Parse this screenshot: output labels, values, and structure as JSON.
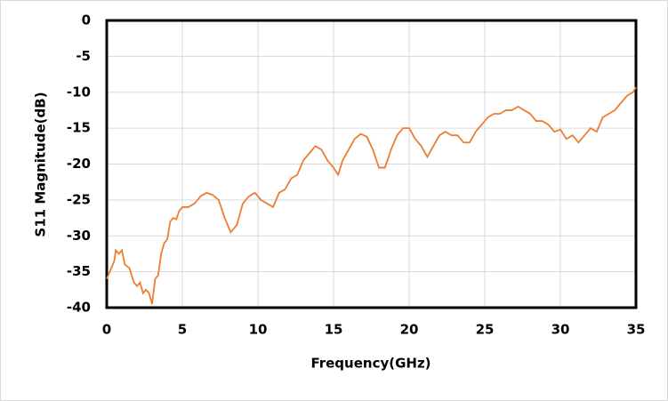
{
  "chart_data": {
    "type": "line",
    "x_label": "Frequency(GHz)",
    "y_label": "S11 Magnitude(dB)",
    "x": [
      0,
      0.2,
      0.5,
      0.6,
      0.8,
      1.0,
      1.2,
      1.5,
      1.8,
      2.0,
      2.2,
      2.4,
      2.6,
      2.8,
      3.0,
      3.2,
      3.4,
      3.6,
      3.8,
      4.0,
      4.2,
      4.4,
      4.6,
      4.8,
      5.0,
      5.4,
      5.8,
      6.2,
      6.6,
      7.0,
      7.4,
      7.8,
      8.2,
      8.6,
      9.0,
      9.4,
      9.8,
      10.2,
      10.6,
      11.0,
      11.4,
      11.8,
      12.2,
      12.6,
      13.0,
      13.4,
      13.8,
      14.2,
      14.6,
      15.0,
      15.3,
      15.6,
      16.0,
      16.4,
      16.8,
      17.2,
      17.6,
      18.0,
      18.4,
      18.8,
      19.2,
      19.6,
      20.0,
      20.4,
      20.8,
      21.2,
      21.6,
      22.0,
      22.4,
      22.8,
      23.2,
      23.6,
      24.0,
      24.4,
      24.8,
      25.2,
      25.6,
      26.0,
      26.4,
      26.8,
      27.2,
      27.6,
      28.0,
      28.4,
      28.8,
      29.2,
      29.6,
      30.0,
      30.4,
      30.8,
      31.2,
      31.6,
      32.0,
      32.4,
      32.8,
      33.2,
      33.6,
      34.0,
      34.4,
      34.8,
      35.0
    ],
    "series": [
      {
        "color": "#ed7d31",
        "values": [
          -36,
          -35,
          -33.5,
          -32,
          -32.5,
          -32,
          -34,
          -34.5,
          -36.5,
          -37,
          -36.5,
          -38,
          -37.5,
          -38,
          -39.5,
          -36,
          -35.5,
          -32.5,
          -31,
          -30.5,
          -28,
          -27.5,
          -27.7,
          -26.5,
          -26,
          -26,
          -25.5,
          -24.5,
          -24,
          -24.3,
          -25,
          -27.5,
          -29.5,
          -28.5,
          -25.5,
          -24.5,
          -24,
          -25,
          -25.5,
          -26,
          -24,
          -23.5,
          -22,
          -21.5,
          -19.5,
          -18.5,
          -17.5,
          -18,
          -19.5,
          -20.5,
          -21.5,
          -19.5,
          -18,
          -16.5,
          -15.8,
          -16.2,
          -18,
          -20.5,
          -20.5,
          -18,
          -16,
          -15,
          -15,
          -16.5,
          -17.5,
          -19,
          -17.5,
          -16,
          -15.5,
          -16,
          -16,
          -17,
          -17,
          -15.5,
          -14.5,
          -13.5,
          -13,
          -13,
          -12.5,
          -12.5,
          -12,
          -12.5,
          -13,
          -14,
          -14,
          -14.5,
          -15.5,
          -15.2,
          -16.5,
          -16,
          -17,
          -16,
          -15,
          -15.5,
          -13.5,
          -13,
          -12.5,
          -11.5,
          -10.5,
          -10,
          -9.3
        ]
      }
    ],
    "xlim": [
      0,
      35
    ],
    "xticks": [
      0,
      5,
      10,
      15,
      20,
      25,
      30,
      35
    ],
    "ylim": [
      -40,
      0
    ],
    "yticks": [
      0,
      -5,
      -10,
      -15,
      -20,
      -25,
      -30,
      -35,
      -40
    ],
    "grid": true
  }
}
